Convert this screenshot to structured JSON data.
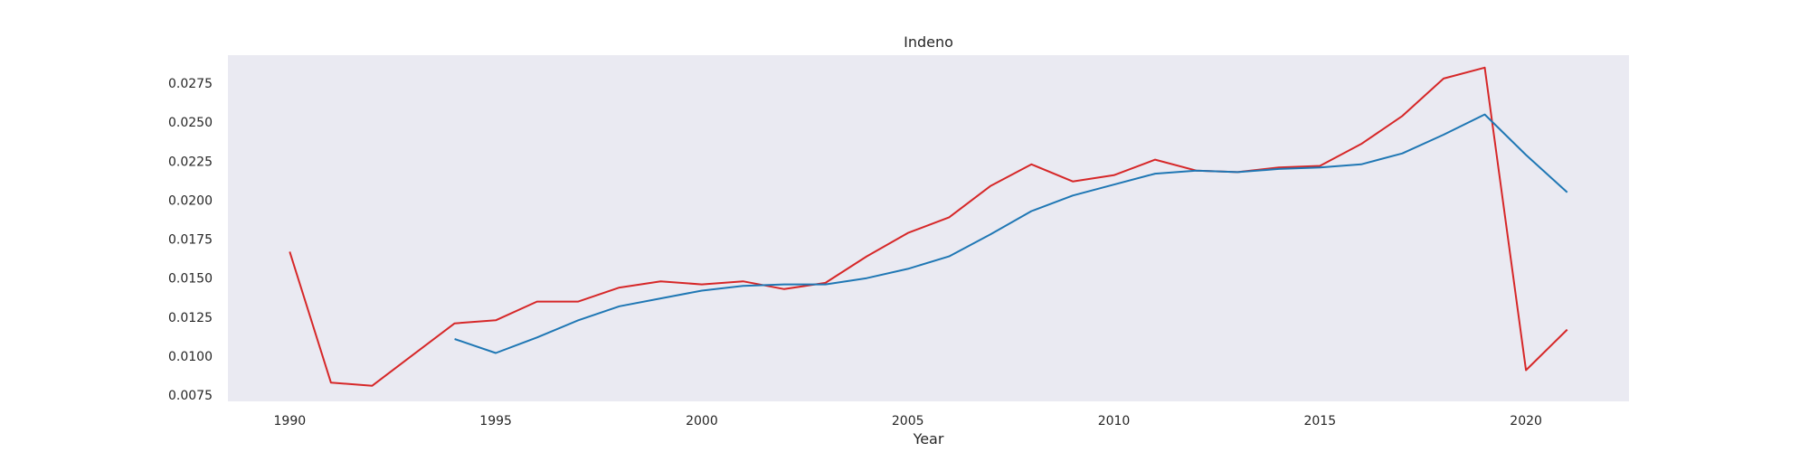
{
  "chart_data": {
    "type": "line",
    "title": "Indeno",
    "xlabel": "Year",
    "ylabel": "",
    "xlim": [
      1988.5,
      2022.5
    ],
    "ylim": [
      0.0071,
      0.0293
    ],
    "grid": false,
    "legend": "none",
    "x_ticks": [
      1990,
      1995,
      2000,
      2005,
      2010,
      2015,
      2020
    ],
    "x_tick_labels": [
      "1990",
      "1995",
      "2000",
      "2005",
      "2010",
      "2015",
      "2020"
    ],
    "y_ticks": [
      0.0075,
      0.01,
      0.0125,
      0.015,
      0.0175,
      0.02,
      0.0225,
      0.025,
      0.0275
    ],
    "y_tick_labels": [
      "0.0075",
      "0.0100",
      "0.0125",
      "0.0150",
      "0.0175",
      "0.0200",
      "0.0225",
      "0.0250",
      "0.0275"
    ],
    "series": [
      {
        "color": "#d62728",
        "x": [
          1990,
          1991,
          1992,
          1993,
          1994,
          1995,
          1996,
          1997,
          1998,
          1999,
          2000,
          2001,
          2002,
          2003,
          2004,
          2005,
          2006,
          2007,
          2008,
          2009,
          2010,
          2011,
          2012,
          2013,
          2014,
          2015,
          2016,
          2017,
          2018,
          2019,
          2020,
          2021
        ],
        "y": [
          0.0167,
          0.0083,
          0.0081,
          0.0101,
          0.0121,
          0.0123,
          0.0135,
          0.0135,
          0.0144,
          0.0148,
          0.0146,
          0.0148,
          0.0143,
          0.0147,
          0.0164,
          0.0179,
          0.0189,
          0.0209,
          0.0223,
          0.0212,
          0.0216,
          0.0226,
          0.0219,
          0.0218,
          0.0221,
          0.0222,
          0.0236,
          0.0254,
          0.0278,
          0.0285,
          0.0091,
          0.0117
        ]
      },
      {
        "color": "#1f77b4",
        "x": [
          1994,
          1995,
          1996,
          1997,
          1998,
          1999,
          2000,
          2001,
          2002,
          2003,
          2004,
          2005,
          2006,
          2007,
          2008,
          2009,
          2010,
          2011,
          2012,
          2013,
          2014,
          2015,
          2016,
          2017,
          2018,
          2019,
          2020,
          2021
        ],
        "y": [
          0.0111,
          0.0102,
          0.0112,
          0.0123,
          0.0132,
          0.0137,
          0.0142,
          0.0145,
          0.0146,
          0.0146,
          0.015,
          0.0156,
          0.0164,
          0.0178,
          0.0193,
          0.0203,
          0.021,
          0.0217,
          0.0219,
          0.0218,
          0.022,
          0.0221,
          0.0223,
          0.023,
          0.0242,
          0.0255,
          0.0229,
          0.0205
        ]
      }
    ]
  }
}
